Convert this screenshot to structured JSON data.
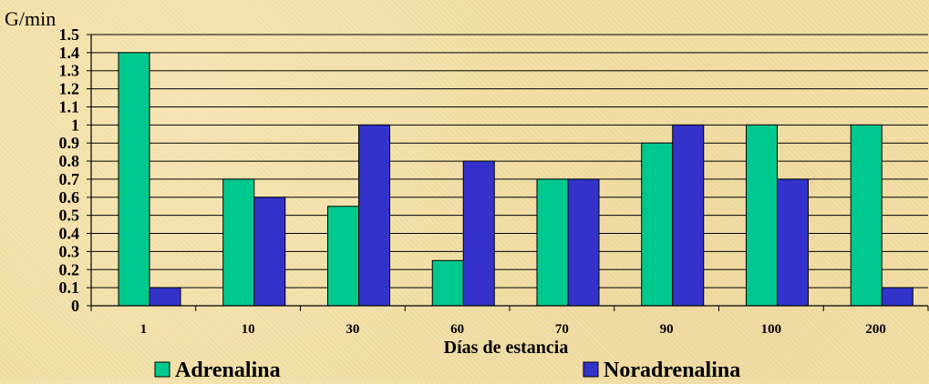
{
  "chart_data": {
    "type": "bar",
    "ylabel": "G/min",
    "xlabel": "Días de estancia",
    "categories": [
      "1",
      "10",
      "30",
      "60",
      "70",
      "90",
      "100",
      "200"
    ],
    "ylim": [
      0,
      1.5
    ],
    "yticks": [
      "0",
      "0.1",
      "0.2",
      "0.3",
      "0.4",
      "0.5",
      "0.6",
      "0.7",
      "0.8",
      "0.9",
      "1",
      "1.1",
      "1.2",
      "1.3",
      "1.4",
      "1.5"
    ],
    "grid": true,
    "legend_position": "bottom",
    "series": [
      {
        "name": "Adrenalina",
        "color": "#00c98f",
        "values": [
          1.4,
          0.7,
          0.55,
          0.25,
          0.7,
          0.9,
          1.0,
          1.0
        ]
      },
      {
        "name": "Noradrenalina",
        "color": "#3333cc",
        "values": [
          0.1,
          0.6,
          1.0,
          0.8,
          0.7,
          1.0,
          0.7,
          0.1
        ]
      }
    ]
  }
}
